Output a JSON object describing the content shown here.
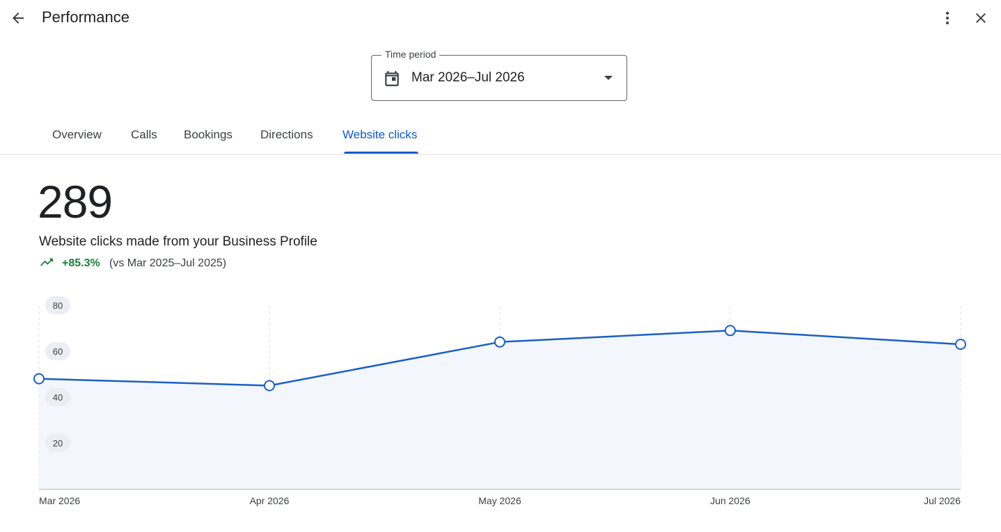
{
  "header": {
    "title": "Performance",
    "icons": {
      "back": "arrow-back-icon",
      "more": "more-vert-icon",
      "close": "close-icon"
    }
  },
  "time_period": {
    "label": "Time period",
    "value": "Mar 2026–Jul 2026",
    "icon": "calendar-icon"
  },
  "tabs": [
    {
      "label": "Overview",
      "active": false
    },
    {
      "label": "Calls",
      "active": false
    },
    {
      "label": "Bookings",
      "active": false
    },
    {
      "label": "Directions",
      "active": false
    },
    {
      "label": "Website clicks",
      "active": true
    }
  ],
  "summary": {
    "total": "289",
    "description": "Website clicks made from your Business Profile",
    "change": "+85.3%",
    "comparison": "(vs Mar 2025–Jul 2025)",
    "change_color": "#188038"
  },
  "colors": {
    "accent": "#0b57d0",
    "line": "#1a5fc4",
    "area_fill": "#f3f6fd"
  },
  "chart_data": {
    "type": "area",
    "categories": [
      "Mar 2026",
      "Apr 2026",
      "May 2026",
      "Jun 2026",
      "Jul 2026"
    ],
    "values": [
      48,
      45,
      64,
      69,
      63
    ],
    "yticks": [
      "80",
      "60",
      "40",
      "20"
    ],
    "ylim": [
      0,
      80
    ],
    "grid": "vertical-dashed"
  }
}
